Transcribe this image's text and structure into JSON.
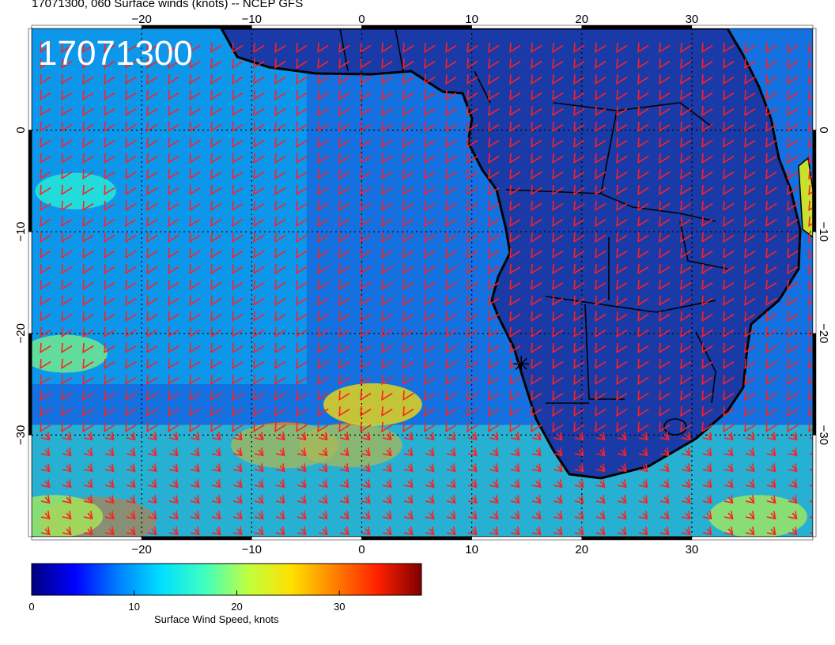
{
  "title": "17071300, 060 Surface winds (knots) -- NCEP GFS",
  "timestamp_stamp": "17071300",
  "map": {
    "lon_range": [
      -30,
      41
    ],
    "lat_range": [
      -40,
      10
    ],
    "lon_ticks": [
      -20,
      -10,
      0,
      10,
      20,
      30
    ],
    "lat_ticks": [
      0,
      -10,
      -20,
      -30
    ],
    "lon_tick_labels": [
      "−20",
      "−10",
      "0",
      "10",
      "20",
      "30"
    ],
    "lat_tick_labels": [
      "0",
      "−10",
      "−20",
      "−30"
    ],
    "grid": "dotted",
    "barb_color": "#ff2020",
    "coastline_color": "#000000",
    "marker": {
      "lon": 14.5,
      "lat": -23,
      "symbol": "star"
    },
    "high_wind_zones": [
      {
        "lon": -7,
        "lat": -31,
        "speed": 30
      },
      {
        "lon": -1,
        "lat": -31,
        "speed": 28
      },
      {
        "lon": 1,
        "lat": -27,
        "speed": 26
      },
      {
        "lon": -24,
        "lat": -38.5,
        "speed": 34
      },
      {
        "lon": -28,
        "lat": -38,
        "speed": 26
      },
      {
        "lon": 36,
        "lat": -38,
        "speed": 26
      },
      {
        "lon": -27,
        "lat": -22,
        "speed": 20
      },
      {
        "lon": -26,
        "lat": -6,
        "speed": 18
      }
    ]
  },
  "colorbar": {
    "title": "Surface Wind Speed, knots",
    "min": 0,
    "max": 38,
    "ticks": [
      "0",
      "10",
      "20",
      "30"
    ],
    "tick_values": [
      0,
      10,
      20,
      30
    ],
    "colors": [
      "#00007f",
      "#0000ff",
      "#007fff",
      "#00e0ff",
      "#40ffc0",
      "#c0ff40",
      "#ffe000",
      "#ff8000",
      "#ff2000",
      "#7f0000"
    ]
  }
}
